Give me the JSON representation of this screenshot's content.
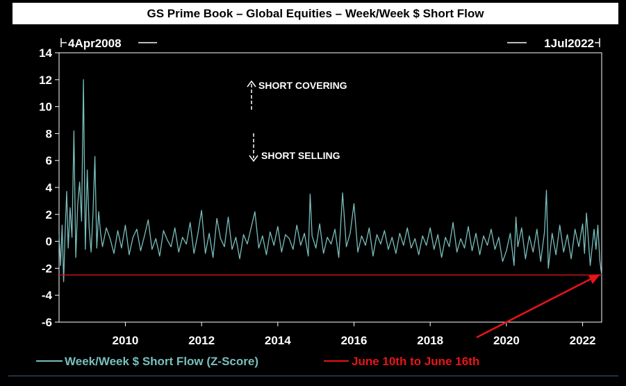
{
  "chart_data": {
    "type": "line",
    "title": "GS Prime Book – Global Equities – Week/Week $ Short Flow",
    "date_start_label": "4Apr2008",
    "date_end_label": "1Jul2022",
    "x_range": [
      2008.26,
      2022.5
    ],
    "ylim": [
      -6,
      14
    ],
    "y_ticks": [
      "14",
      "12",
      "10",
      "8",
      "6",
      "4",
      "2",
      "0",
      "-2",
      "-4",
      "-6"
    ],
    "x_ticks": [
      "2010",
      "2012",
      "2014",
      "2016",
      "2018",
      "2020",
      "2022"
    ],
    "series": [
      {
        "name": "Week/Week $ Short Flow (Z-Score)",
        "color": "#79bfbd",
        "x": [
          2008.26,
          2008.3,
          2008.34,
          2008.38,
          2008.42,
          2008.46,
          2008.5,
          2008.55,
          2008.6,
          2008.65,
          2008.7,
          2008.75,
          2008.8,
          2008.85,
          2008.9,
          2008.95,
          2009.0,
          2009.05,
          2009.1,
          2009.15,
          2009.2,
          2009.25,
          2009.3,
          2009.35,
          2009.4,
          2009.5,
          2009.6,
          2009.7,
          2009.8,
          2009.9,
          2010.0,
          2010.1,
          2010.2,
          2010.3,
          2010.4,
          2010.5,
          2010.6,
          2010.7,
          2010.8,
          2010.9,
          2011.0,
          2011.1,
          2011.2,
          2011.3,
          2011.4,
          2011.5,
          2011.6,
          2011.7,
          2011.8,
          2011.9,
          2012.0,
          2012.1,
          2012.2,
          2012.3,
          2012.4,
          2012.5,
          2012.6,
          2012.7,
          2012.8,
          2012.9,
          2013.0,
          2013.1,
          2013.2,
          2013.3,
          2013.4,
          2013.5,
          2013.6,
          2013.7,
          2013.8,
          2013.9,
          2014.0,
          2014.1,
          2014.2,
          2014.3,
          2014.4,
          2014.5,
          2014.6,
          2014.7,
          2014.8,
          2014.85,
          2014.9,
          2015.0,
          2015.1,
          2015.2,
          2015.3,
          2015.4,
          2015.5,
          2015.6,
          2015.7,
          2015.8,
          2015.9,
          2016.0,
          2016.1,
          2016.2,
          2016.3,
          2016.4,
          2016.5,
          2016.6,
          2016.7,
          2016.8,
          2016.9,
          2017.0,
          2017.1,
          2017.2,
          2017.3,
          2017.4,
          2017.5,
          2017.6,
          2017.7,
          2017.8,
          2017.9,
          2018.0,
          2018.1,
          2018.2,
          2018.3,
          2018.4,
          2018.5,
          2018.6,
          2018.7,
          2018.8,
          2018.9,
          2019.0,
          2019.1,
          2019.2,
          2019.3,
          2019.4,
          2019.5,
          2019.6,
          2019.7,
          2019.8,
          2019.9,
          2020.0,
          2020.1,
          2020.2,
          2020.25,
          2020.3,
          2020.4,
          2020.5,
          2020.6,
          2020.7,
          2020.8,
          2020.9,
          2021.0,
          2021.05,
          2021.1,
          2021.2,
          2021.3,
          2021.4,
          2021.5,
          2021.6,
          2021.7,
          2021.8,
          2021.9,
          2022.0,
          2022.05,
          2022.1,
          2022.2,
          2022.3,
          2022.35,
          2022.4,
          2022.45,
          2022.5
        ],
        "values": [
          0.5,
          -1.8,
          1.2,
          -3.0,
          0.8,
          3.7,
          -0.5,
          2.5,
          0.3,
          8.2,
          -1.2,
          2.8,
          4.4,
          1.5,
          12.0,
          -0.6,
          5.3,
          1.0,
          -0.8,
          2.0,
          6.3,
          -0.5,
          2.2,
          0.6,
          -0.4,
          1.0,
          0.2,
          -0.9,
          0.8,
          -0.5,
          1.2,
          -1.0,
          0.3,
          0.9,
          -0.7,
          0.4,
          1.6,
          -0.6,
          0.2,
          -1.1,
          0.8,
          0.1,
          -0.4,
          1.0,
          -0.8,
          0.3,
          -0.2,
          1.4,
          -0.9,
          0.5,
          2.3,
          -0.9,
          0.6,
          -1.2,
          1.7,
          0.2,
          -0.4,
          1.8,
          -0.6,
          0.3,
          -1.3,
          0.5,
          -0.2,
          1.0,
          2.2,
          -0.5,
          0.4,
          -1.0,
          0.7,
          -0.3,
          1.1,
          -0.8,
          0.5,
          0.2,
          -0.6,
          1.2,
          -0.3,
          0.6,
          -1.1,
          3.5,
          0.4,
          -0.5,
          1.3,
          -0.9,
          0.3,
          -0.2,
          0.9,
          -1.2,
          3.6,
          -0.4,
          0.6,
          2.8,
          -0.8,
          0.4,
          -0.3,
          1.0,
          -1.1,
          0.5,
          -0.2,
          0.8,
          -0.6,
          0.3,
          -0.9,
          0.6,
          -0.3,
          1.0,
          -0.5,
          0.2,
          -1.0,
          0.4,
          -0.3,
          1.0,
          -0.6,
          0.5,
          -1.2,
          0.3,
          -0.4,
          1.4,
          -0.8,
          0.2,
          -0.5,
          1.1,
          -0.7,
          0.6,
          -1.0,
          0.4,
          -0.3,
          0.9,
          -0.6,
          0.3,
          -1.5,
          -0.7,
          0.6,
          -1.8,
          1.8,
          -0.4,
          1.0,
          -1.3,
          0.4,
          -0.8,
          0.9,
          -1.5,
          0.7,
          3.8,
          -2.0,
          0.6,
          -1.0,
          1.2,
          -0.8,
          0.5,
          -1.3,
          0.9,
          -0.4,
          1.3,
          -0.9,
          2.1,
          -1.8,
          0.9,
          -0.6,
          1.2,
          -1.4,
          -2.5
        ]
      }
    ],
    "reference_line": {
      "name": "June 10th to June 16th",
      "value": -2.5,
      "color": "#e8141a"
    },
    "annotations": {
      "short_covering": "SHORT COVERING",
      "short_selling": "SHORT SELLING"
    },
    "legend_placement": "bottom",
    "grid": false
  }
}
